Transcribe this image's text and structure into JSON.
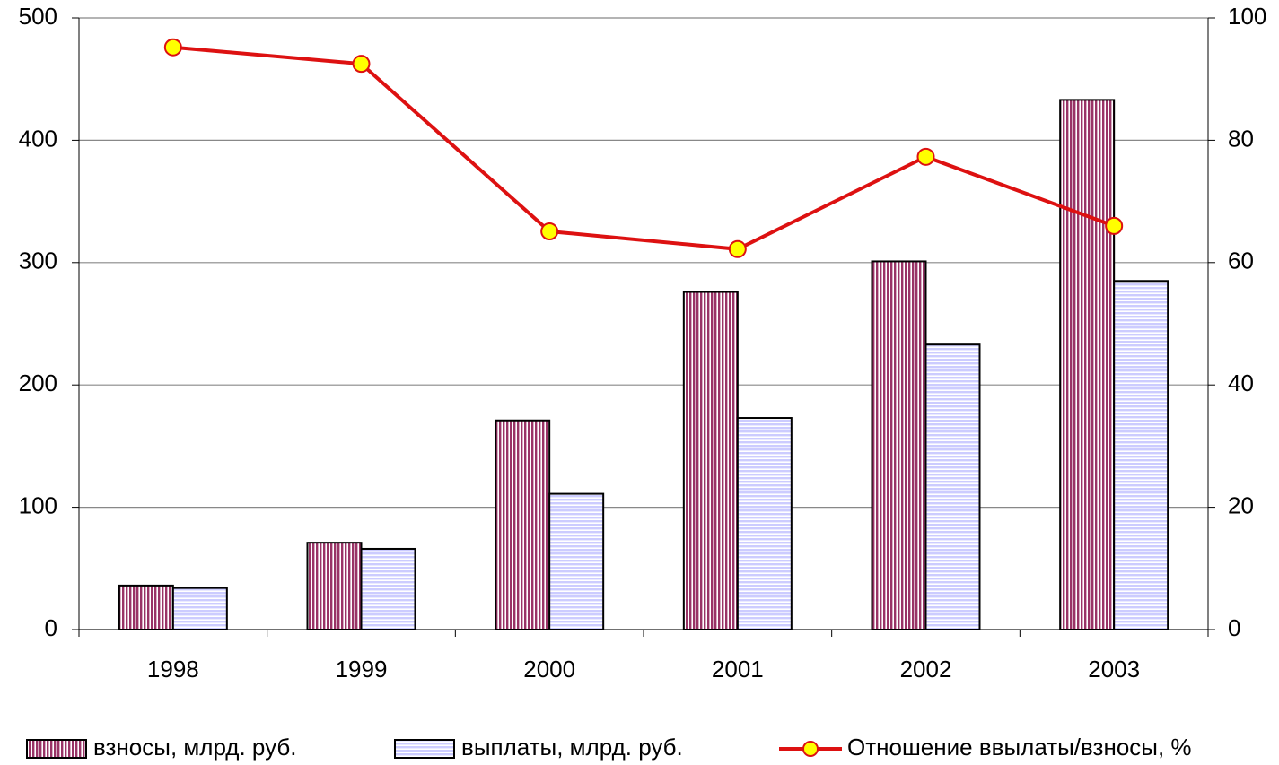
{
  "chart_data": {
    "type": "bar",
    "categories": [
      "1998",
      "1999",
      "2000",
      "2001",
      "2002",
      "2003"
    ],
    "series": [
      {
        "name": "взносы, млрд. руб.",
        "color": "#993366",
        "values": [
          36,
          71,
          171,
          276,
          301,
          433
        ]
      },
      {
        "name": "выплаты, млрд. руб.",
        "color": "#ccccff",
        "values": [
          34,
          66,
          111,
          173,
          233,
          285
        ]
      },
      {
        "name": "Отношение  ввылаты/взносы, %",
        "color": "#dd1111",
        "marker_color": "#ffff00",
        "type": "line",
        "axis": "y2",
        "values": [
          95.2,
          92.5,
          65.1,
          62.2,
          77.3,
          66
        ]
      }
    ],
    "ylim": [
      0,
      500
    ],
    "yticks": [
      0,
      100,
      200,
      300,
      400,
      500
    ],
    "y2lim": [
      0,
      100
    ],
    "y2ticks": [
      0,
      20,
      40,
      60,
      80,
      100
    ],
    "grid": true,
    "legend": "bottom"
  }
}
